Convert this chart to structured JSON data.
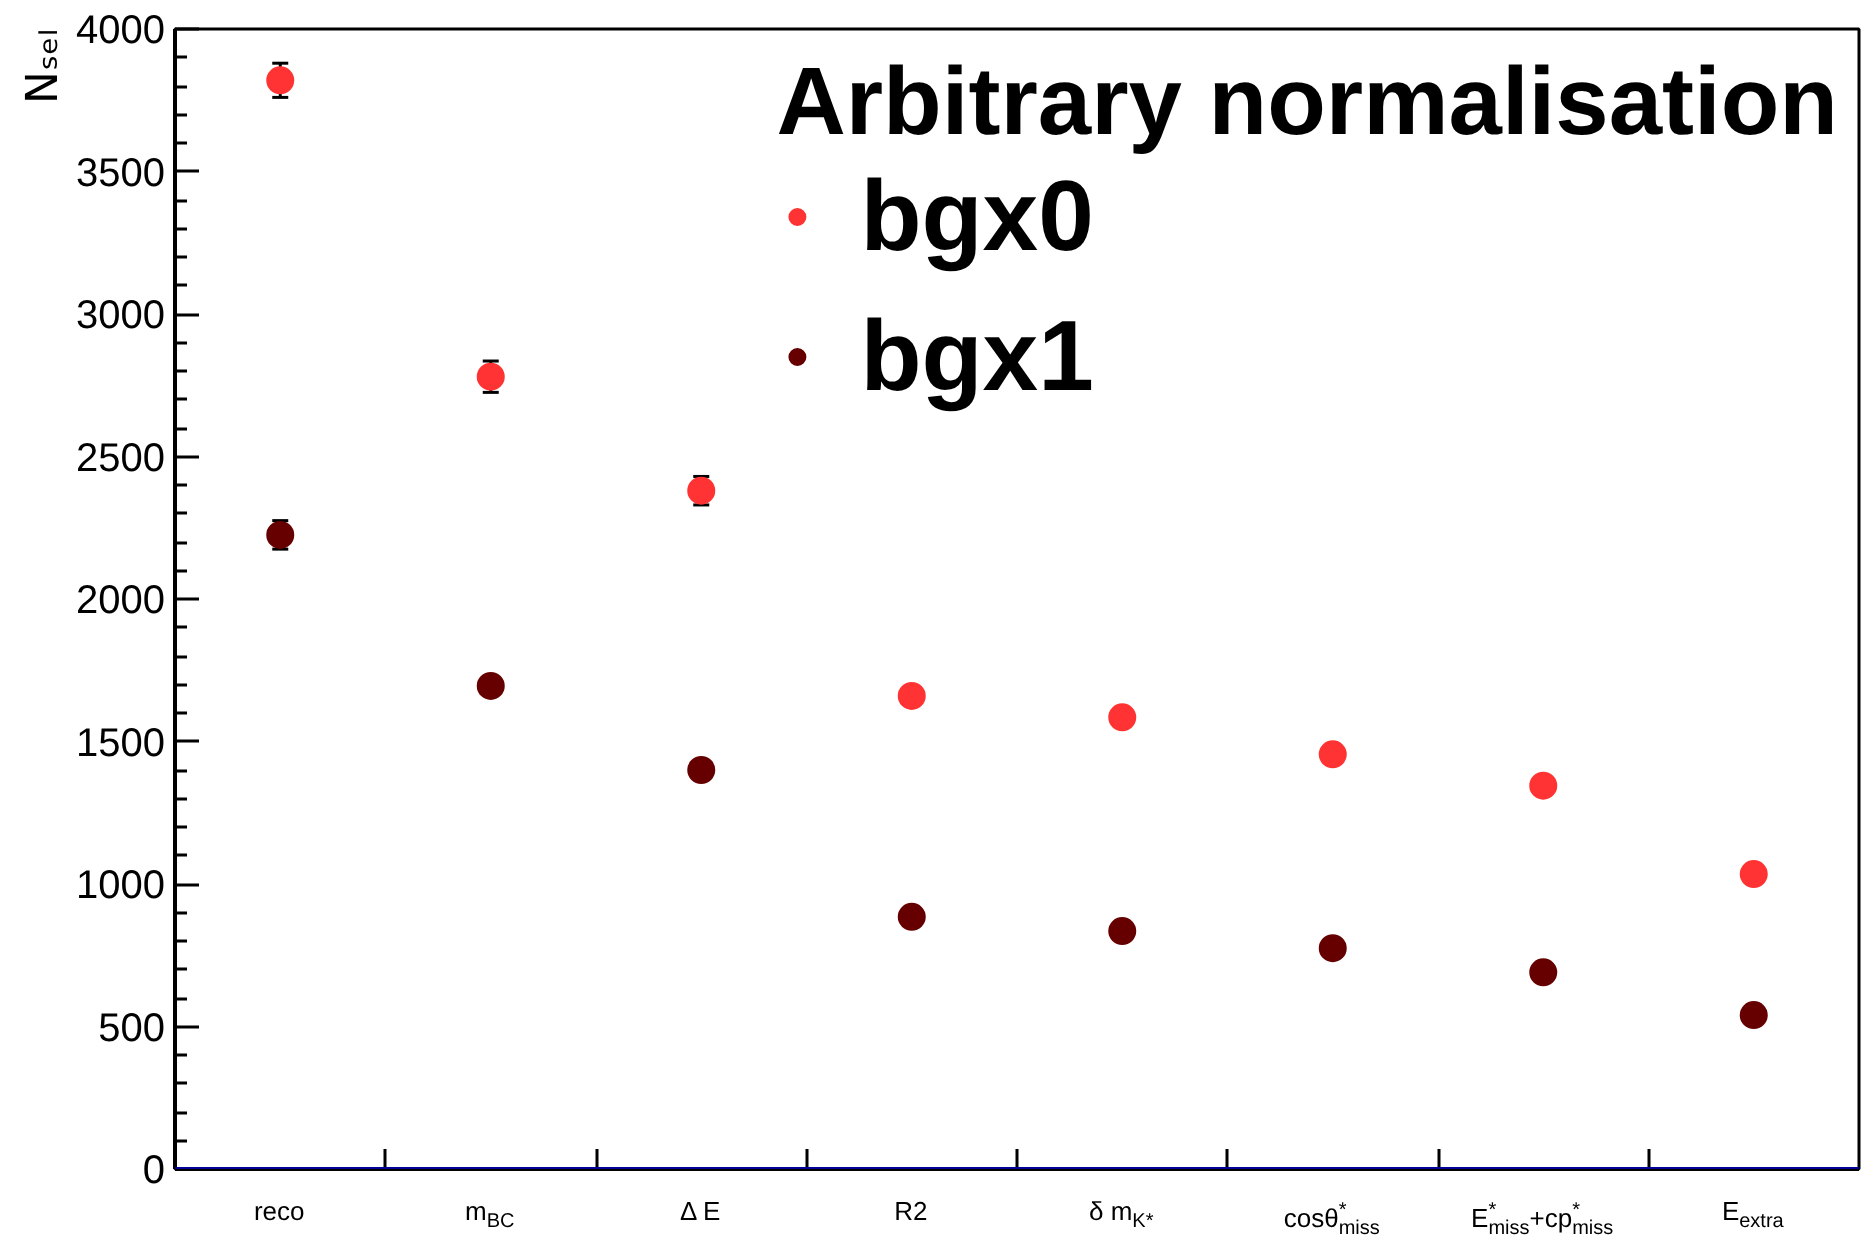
{
  "chart_data": {
    "type": "scatter",
    "ylabel": "Nₛₑₗ",
    "legend_title": "Arbitrary normalisation",
    "categories": [
      "reco",
      "m$_{BC}$",
      "Δ E",
      "R2",
      "δ m$_{K*}$",
      "cosθ$^{*}$$_{miss}$",
      "E$^{*}$$_{miss}$+cp$^{*}$$_{miss}$",
      "E$_{extra}$"
    ],
    "series": [
      {
        "name": "bgx0",
        "color": "#ff3333",
        "values": [
          3820,
          2780,
          2380,
          1660,
          1585,
          1455,
          1345,
          1035
        ],
        "errors": [
          60,
          55,
          50,
          null,
          null,
          null,
          null,
          null
        ]
      },
      {
        "name": "bgx1",
        "color": "#660000",
        "values": [
          2225,
          1695,
          1400,
          885,
          835,
          775,
          690,
          540
        ],
        "errors": [
          50,
          null,
          null,
          null,
          null,
          null,
          null,
          null
        ]
      }
    ],
    "ylim": [
      0,
      4000
    ],
    "yticks": [
      0,
      500,
      1000,
      1500,
      2000,
      2500,
      3000,
      3500,
      4000
    ],
    "grid": false,
    "legend": "top right",
    "marker": "circle",
    "ref_lines": [
      {
        "axis": "y",
        "value": 0,
        "color": "#000099"
      }
    ]
  }
}
